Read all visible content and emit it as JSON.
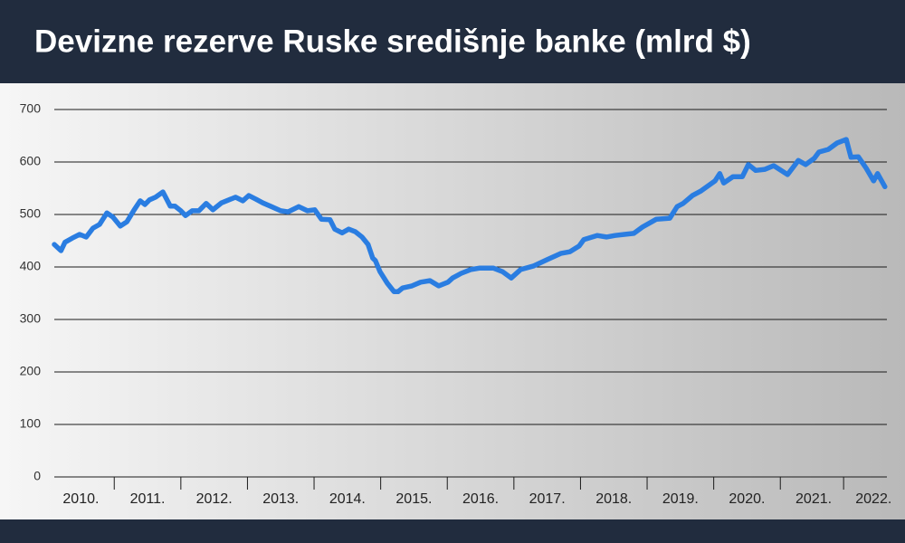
{
  "chart_data": {
    "type": "line",
    "title": "Devizne rezerve Ruske središnje banke (mlrd $)",
    "x": [
      2010.0,
      2010.1,
      2010.16,
      2010.27,
      2010.38,
      2010.48,
      2010.58,
      2010.68,
      2010.79,
      2010.88,
      2010.99,
      2011.09,
      2011.2,
      2011.29,
      2011.36,
      2011.43,
      2011.52,
      2011.63,
      2011.74,
      2011.81,
      2011.9,
      2011.97,
      2012.07,
      2012.17,
      2012.28,
      2012.38,
      2012.51,
      2012.72,
      2012.83,
      2012.92,
      2013.03,
      2013.13,
      2013.26,
      2013.4,
      2013.51,
      2013.67,
      2013.8,
      2013.91,
      2014.01,
      2014.14,
      2014.21,
      2014.32,
      2014.42,
      2014.52,
      2014.62,
      2014.71,
      2014.78,
      2014.82,
      2014.89,
      2015.0,
      2015.1,
      2015.16,
      2015.23,
      2015.37,
      2015.5,
      2015.64,
      2015.77,
      2015.91,
      2015.98,
      2016.11,
      2016.25,
      2016.39,
      2016.59,
      2016.73,
      2016.86,
      2017.0,
      2017.2,
      2017.4,
      2017.61,
      2017.74,
      2017.88,
      2017.95,
      2018.15,
      2018.29,
      2018.42,
      2018.56,
      2018.7,
      2018.83,
      2019.04,
      2019.24,
      2019.35,
      2019.44,
      2019.58,
      2019.71,
      2019.92,
      2019.99,
      2020.05,
      2020.19,
      2020.33,
      2020.42,
      2020.53,
      2020.67,
      2020.8,
      2021.01,
      2021.17,
      2021.28,
      2021.41,
      2021.48,
      2021.62,
      2021.75,
      2021.89,
      2021.96,
      2022.07,
      2022.19,
      2022.3,
      2022.36,
      2022.47
    ],
    "series": [
      {
        "color": "#2a7de1",
        "values": [
          443,
          431,
          447,
          455,
          462,
          457,
          474,
          481,
          503,
          495,
          478,
          486,
          509,
          526,
          519,
          528,
          533,
          543,
          516,
          516,
          507,
          498,
          507,
          507,
          521,
          509,
          522,
          533,
          526,
          536,
          529,
          522,
          515,
          507,
          505,
          515,
          507,
          509,
          491,
          490,
          472,
          465,
          472,
          467,
          457,
          443,
          417,
          412,
          391,
          369,
          353,
          353,
          360,
          364,
          371,
          374,
          364,
          371,
          379,
          388,
          395,
          398,
          398,
          391,
          379,
          395,
          402,
          414,
          426,
          429,
          440,
          452,
          460,
          457,
          460,
          462,
          464,
          476,
          491,
          493,
          515,
          521,
          536,
          545,
          564,
          578,
          560,
          572,
          572,
          595,
          584,
          586,
          593,
          576,
          603,
          595,
          607,
          619,
          624,
          636,
          643,
          609,
          610,
          588,
          564,
          578,
          553
        ]
      }
    ],
    "xlim": [
      2010,
      2022.5
    ],
    "xticks": [
      {
        "value": 2010.4,
        "label": "2010."
      },
      {
        "value": 2011.4,
        "label": "2011."
      },
      {
        "value": 2012.4,
        "label": "2012."
      },
      {
        "value": 2013.4,
        "label": "2013."
      },
      {
        "value": 2014.4,
        "label": "2014."
      },
      {
        "value": 2015.4,
        "label": "2015."
      },
      {
        "value": 2016.4,
        "label": "2016."
      },
      {
        "value": 2017.4,
        "label": "2017."
      },
      {
        "value": 2018.4,
        "label": "2018."
      },
      {
        "value": 2019.4,
        "label": "2019."
      },
      {
        "value": 2020.4,
        "label": "2020."
      },
      {
        "value": 2021.4,
        "label": "2021."
      },
      {
        "value": 2022.3,
        "label": "2022."
      }
    ],
    "ylim": [
      0,
      700
    ],
    "yticks": [
      0,
      100,
      200,
      300,
      400,
      500,
      600,
      700
    ],
    "grid": true
  }
}
